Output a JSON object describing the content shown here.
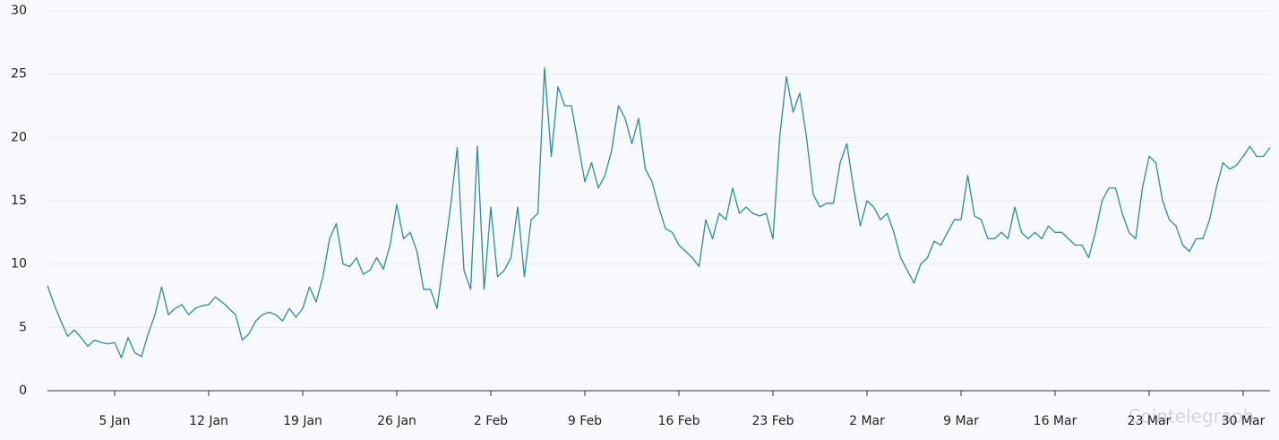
{
  "chart_data": {
    "type": "line",
    "watermark": "Cointelegraph",
    "color": "#2a8d9e",
    "ylim": [
      0,
      30
    ],
    "yticks": [
      0,
      5,
      10,
      15,
      20,
      25,
      30
    ],
    "grid": true,
    "categories": [
      null,
      null,
      null,
      null,
      null,
      null,
      null,
      null,
      null,
      null,
      "5 Jan",
      null,
      null,
      null,
      null,
      null,
      null,
      null,
      null,
      null,
      null,
      null,
      null,
      null,
      "12 Jan",
      null,
      null,
      null,
      null,
      null,
      null,
      null,
      null,
      null,
      null,
      null,
      null,
      null,
      "19 Jan",
      null,
      null,
      null,
      null,
      null,
      null,
      null,
      null,
      null,
      null,
      null,
      null,
      null,
      "26 Jan",
      null,
      null,
      null,
      null,
      null,
      null,
      null,
      null,
      null,
      null,
      null,
      null,
      null,
      "2 Feb",
      null,
      null,
      null,
      null,
      null,
      null,
      null,
      null,
      null,
      null,
      null,
      null,
      null,
      "9 Feb",
      null,
      null,
      null,
      null,
      null,
      null,
      null,
      null,
      null,
      null,
      null,
      null,
      null,
      "16 Feb",
      null,
      null,
      null,
      null,
      null,
      null,
      null,
      null,
      null,
      null,
      null,
      null,
      null,
      "23 Feb",
      null,
      null,
      null,
      null,
      null,
      null,
      null,
      null,
      null,
      null,
      null,
      null,
      null,
      "2 Mar",
      null,
      null,
      null,
      null,
      null,
      null,
      null,
      null,
      null,
      null,
      null,
      null,
      null,
      "9 Mar",
      null,
      null,
      null,
      null,
      null,
      null,
      null,
      null,
      null,
      null,
      null,
      null,
      null,
      "16 Mar",
      null,
      null,
      null,
      null,
      null,
      null,
      null,
      null,
      null,
      null,
      null,
      null,
      null,
      "23 Mar",
      null,
      null,
      null,
      null,
      null,
      null,
      null,
      null,
      null,
      null,
      null,
      null,
      null,
      "30 Mar",
      null,
      null,
      null,
      null
    ],
    "values": [
      8.3,
      6.8,
      5.5,
      4.3,
      4.8,
      4.2,
      3.5,
      4.0,
      3.8,
      3.7,
      3.8,
      2.6,
      4.2,
      3.0,
      2.7,
      4.5,
      6.0,
      8.2,
      6.0,
      6.5,
      6.8,
      6.0,
      6.5,
      6.7,
      6.8,
      7.4,
      7.0,
      6.5,
      6.0,
      4.0,
      4.5,
      5.5,
      6.0,
      6.2,
      6.0,
      5.5,
      6.5,
      5.8,
      6.5,
      8.2,
      7.0,
      9.0,
      12,
      13.2,
      10.0,
      9.8,
      10.5,
      9.2,
      9.5,
      10.5,
      9.6,
      11.5,
      14.7,
      12.0,
      12.5,
      11.0,
      8.0,
      8.0,
      6.5,
      10.5,
      14.5,
      19.2,
      9.5,
      8.0,
      19.3,
      8.0,
      14.5,
      9.0,
      9.5,
      10.5,
      14.5,
      9.0,
      13.5,
      14.0,
      25.5,
      18.5,
      24.0,
      22.5,
      22.5,
      19.5,
      16.5,
      18.0,
      16.0,
      17.0,
      19.0,
      22.5,
      21.5,
      19.5,
      21.5,
      17.5,
      16.5,
      14.5,
      12.8,
      12.5,
      11.5,
      11.0,
      10.5,
      9.8,
      13.5,
      12.0,
      14.0,
      13.5,
      16.0,
      14.0,
      14.5,
      14.0,
      13.8,
      14.0,
      12.0,
      20.0,
      24.8,
      22.0,
      23.5,
      20.0,
      15.5,
      14.5,
      14.8,
      14.8,
      18.0,
      19.5,
      16.0,
      13.0,
      15.0,
      14.5,
      13.5,
      14.0,
      12.5,
      10.5,
      9.5,
      8.5,
      10.0,
      10.5,
      11.8,
      11.5,
      12.5,
      13.5,
      13.5,
      17.0,
      13.8,
      13.5,
      12.0,
      12.0,
      12.5,
      12.0,
      14.5,
      12.5,
      12.0,
      12.5,
      12.0,
      13.0,
      12.5,
      12.5,
      12.0,
      11.5,
      11.5,
      10.5,
      12.5,
      15.0,
      16.0,
      16.0,
      14.0,
      12.5,
      12.0,
      16.0,
      18.5,
      18.0,
      15.0,
      13.5,
      13.0,
      11.5,
      11.0,
      12.0,
      12.0,
      13.5,
      16.0,
      18.0,
      17.5,
      17.8,
      18.5,
      19.3,
      18.5,
      18.5,
      19.2
    ]
  }
}
